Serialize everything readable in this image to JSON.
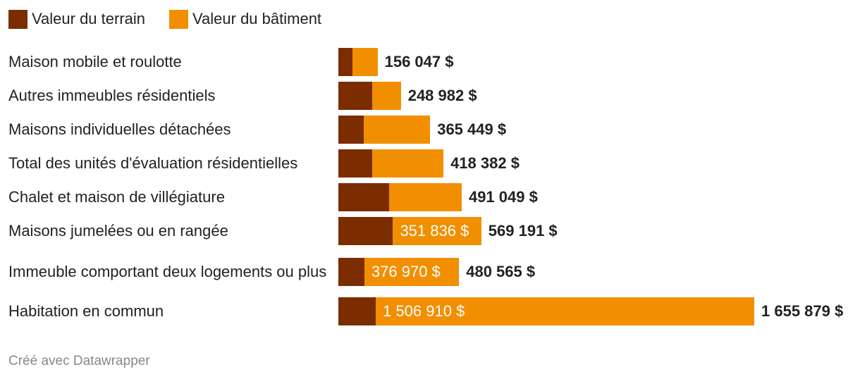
{
  "chart_data": {
    "type": "stacked-bar-horizontal",
    "categories": [
      "Maison mobile et roulotte",
      "Autres immeubles résidentiels",
      "Maisons individuelles détachées",
      "Total des unités d'évaluation résidentielles",
      "Chalet et maison de villégiature",
      "Maisons jumelées ou en rangée",
      "Immeuble comportant deux logements ou plus",
      "Habitation en commun"
    ],
    "series": [
      {
        "name": "Valeur du terrain",
        "color": "#7b2d00",
        "values": [
          56000,
          134600,
          101000,
          134600,
          202000,
          217355,
          103595,
          148969
        ]
      },
      {
        "name": "Valeur du bâtiment",
        "color": "#f28f00",
        "values": [
          100047,
          114382,
          264449,
          283782,
          289049,
          351836,
          376970,
          1506910
        ],
        "value_labels": [
          null,
          null,
          null,
          null,
          null,
          "351 836 $",
          "376 970 $",
          "1 506 910 $"
        ]
      }
    ],
    "totals": [
      156047,
      248982,
      365449,
      418382,
      491049,
      569191,
      480565,
      1655879
    ],
    "total_labels": [
      "156 047 $",
      "248 982 $",
      "365 449 $",
      "418 382 $",
      "491 049 $",
      "569 191 $",
      "480 565 $",
      "1 655 879 $"
    ],
    "footer": "Créé avec Datawrapper"
  }
}
